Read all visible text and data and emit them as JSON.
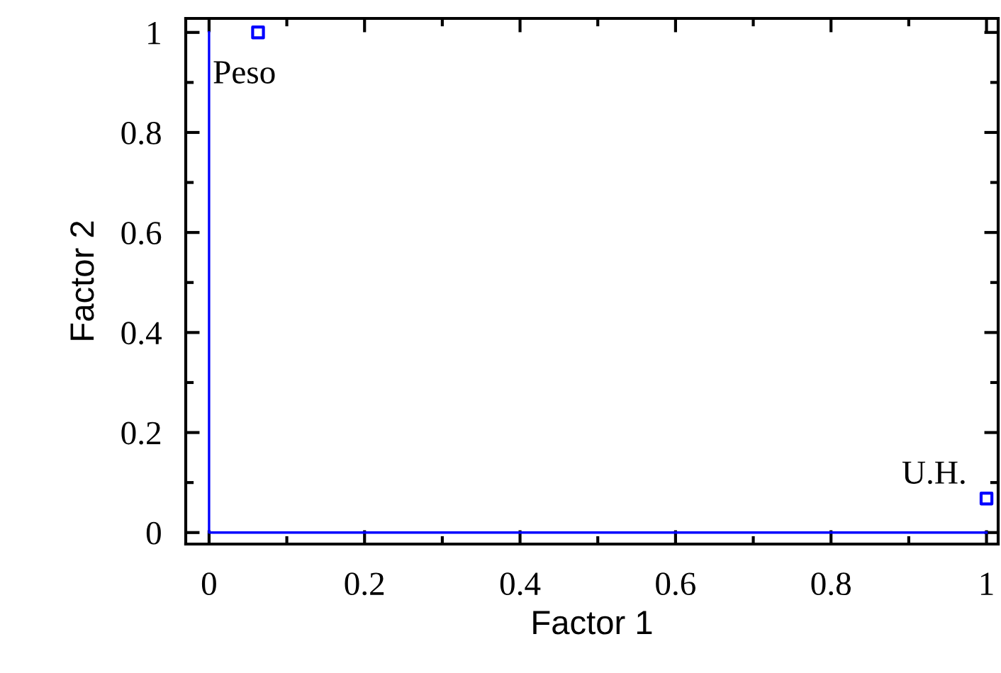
{
  "chart_data": {
    "type": "scatter",
    "xlabel": "Factor 1",
    "ylabel": "Factor 2",
    "series": [
      {
        "x": [
          0.063,
          1.0
        ],
        "values": [
          1.0,
          0.068
        ],
        "color": "#0000ff",
        "marker": "square"
      },
      {
        "type": "line",
        "x": [
          0,
          0,
          1
        ],
        "values": [
          1,
          0,
          0
        ],
        "color": "#0000ff",
        "marker": "none"
      }
    ],
    "annotations": [
      {
        "text": "Peso",
        "x": 0.063,
        "y": 1.0
      },
      {
        "text": "U.H.",
        "x": 1.0,
        "y": 0.068
      }
    ],
    "xlim": [
      -0.03,
      1.015
    ],
    "ylim": [
      -0.023,
      1.028
    ],
    "xticks": [
      0,
      0.2,
      0.4,
      0.6,
      0.8,
      1
    ],
    "yticks": [
      0,
      0.2,
      0.4,
      0.6,
      0.8,
      1
    ],
    "grid": false,
    "legend": false
  }
}
